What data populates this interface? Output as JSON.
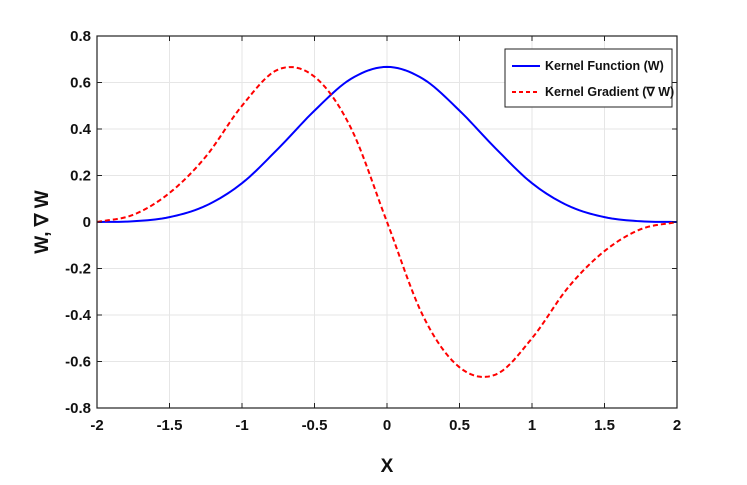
{
  "chart_data": {
    "type": "line",
    "title": "",
    "xlabel": "X",
    "ylabel": "W,  ∇ W",
    "xlim": [
      -2,
      2
    ],
    "ylim": [
      -0.8,
      0.8
    ],
    "xticks": [
      -2,
      -1.5,
      -1,
      -0.5,
      0,
      0.5,
      1,
      1.5,
      2
    ],
    "yticks": [
      -0.8,
      -0.6,
      -0.4,
      -0.2,
      0,
      0.2,
      0.4,
      0.6,
      0.8
    ],
    "xtick_labels": [
      "-2",
      "-1.5",
      "-1",
      "-0.5",
      "0",
      "0.5",
      "1",
      "1.5",
      "2"
    ],
    "ytick_labels": [
      "-0.8",
      "-0.6",
      "-0.4",
      "-0.2",
      "0",
      "0.2",
      "0.4",
      "0.6",
      "0.8"
    ],
    "grid": true,
    "legend_position": "top-right",
    "series": [
      {
        "name": "Kernel Function (W)",
        "style": "solid",
        "color": "#0000ff",
        "x": [
          -2,
          -1.75,
          -1.5,
          -1.25,
          -1,
          -0.75,
          -0.5,
          -0.25,
          0,
          0.25,
          0.5,
          0.75,
          1,
          1.25,
          1.5,
          1.75,
          2
        ],
        "y": [
          0,
          0.003,
          0.021,
          0.07,
          0.167,
          0.316,
          0.479,
          0.615,
          0.667,
          0.615,
          0.479,
          0.316,
          0.167,
          0.07,
          0.021,
          0.003,
          0
        ]
      },
      {
        "name": "Kernel Gradient (∇ W)",
        "style": "dashed",
        "color": "#ff0000",
        "x": [
          -2,
          -1.75,
          -1.5,
          -1.25,
          -1,
          -0.75,
          -0.5,
          -0.25,
          0,
          0.25,
          0.5,
          0.75,
          1,
          1.25,
          1.5,
          1.75,
          2
        ],
        "y": [
          0,
          0.031,
          0.125,
          0.281,
          0.5,
          0.656,
          0.625,
          0.406,
          0,
          -0.406,
          -0.625,
          -0.656,
          -0.5,
          -0.281,
          -0.125,
          -0.031,
          0
        ]
      }
    ]
  }
}
